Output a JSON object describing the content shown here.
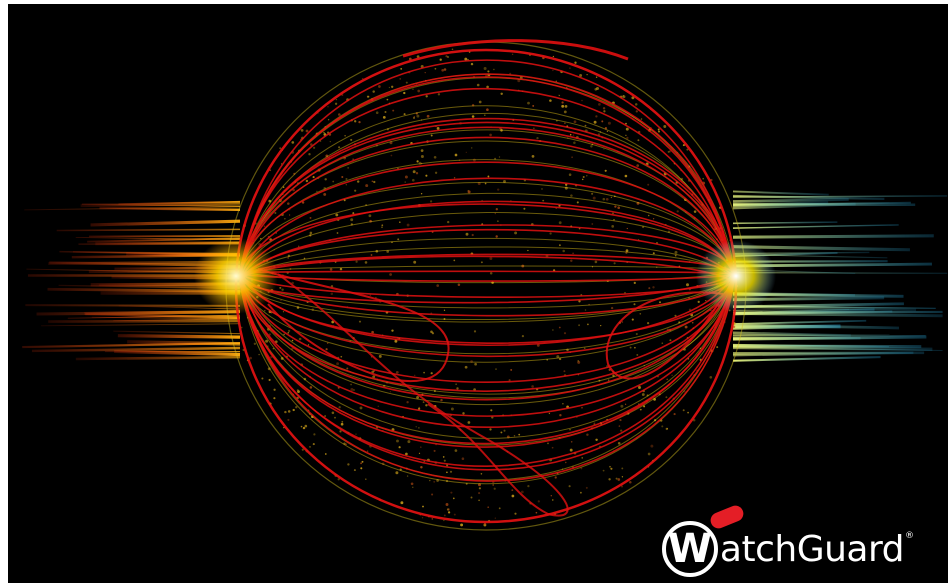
{
  "brand": {
    "letter": "W",
    "text": "atchGuard",
    "registered": "®",
    "accent_color": "#e41e26"
  },
  "palette": {
    "background": "#000000",
    "sphere_red": "#e01010",
    "sphere_yellow": "#f2d41a",
    "stream_left": "#ff5a10",
    "stream_right": "#33b5e0"
  }
}
